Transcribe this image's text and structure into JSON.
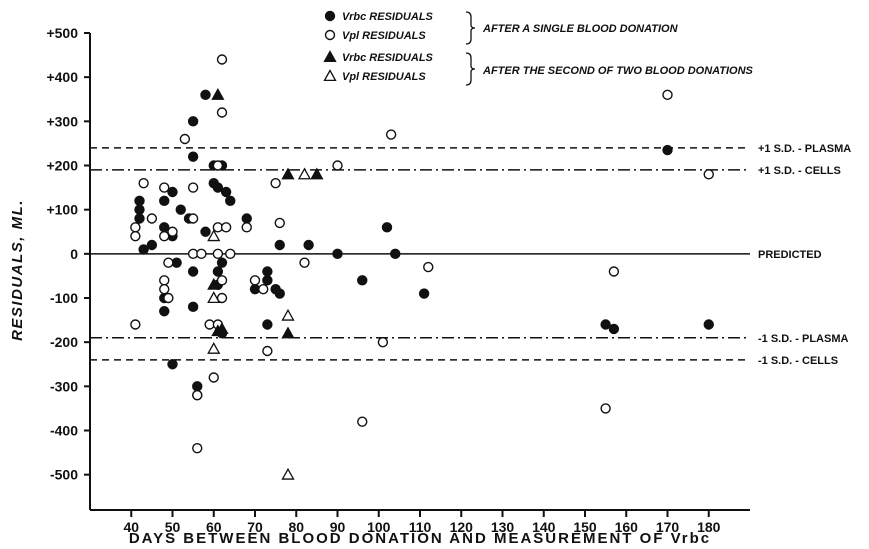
{
  "chart_data": {
    "type": "scatter",
    "xlabel": "DAYS BETWEEN BLOOD DONATION AND MEASUREMENT OF Vrbc",
    "ylabel": "RESIDUALS, ML.",
    "xlim": [
      30,
      190
    ],
    "ylim": [
      -580,
      500
    ],
    "x_ticks": [
      40,
      50,
      60,
      70,
      80,
      90,
      100,
      110,
      120,
      130,
      140,
      150,
      160,
      170,
      180
    ],
    "x_tick_labels": [
      "40",
      "50",
      "60",
      "70",
      "80",
      "90",
      "100",
      "110",
      "120",
      "130",
      "140",
      "150",
      "160",
      "170",
      "180"
    ],
    "y_ticks": [
      500,
      400,
      300,
      200,
      100,
      0,
      -100,
      -200,
      -300,
      -400,
      -500
    ],
    "y_tick_labels": [
      "+500",
      "+400",
      "+300",
      "+200",
      "+100",
      "0",
      "-100",
      "-200",
      "-300",
      "-400",
      "-500"
    ],
    "reference_lines": [
      {
        "label": "+1 S.D. - PLASMA",
        "y": 240,
        "style": "dashed"
      },
      {
        "label": "+1 S.D. - CELLS",
        "y": 190,
        "style": "dash-dot"
      },
      {
        "label": "PREDICTED",
        "y": 0,
        "style": "solid"
      },
      {
        "label": "-1 S.D. - PLASMA",
        "y": -190,
        "style": "dash-dot"
      },
      {
        "label": "-1 S.D. - CELLS",
        "y": -240,
        "style": "dashed"
      }
    ],
    "legend": {
      "entries": [
        {
          "symbol": "filled-circle",
          "label": "Vrbc RESIDUALS"
        },
        {
          "symbol": "open-circle",
          "label": "Vpl RESIDUALS"
        },
        {
          "symbol": "filled-triangle",
          "label": "Vrbc RESIDUALS"
        },
        {
          "symbol": "open-triangle",
          "label": "Vpl RESIDUALS"
        }
      ],
      "groups": [
        {
          "label": "AFTER A SINGLE BLOOD DONATION"
        },
        {
          "label": "AFTER THE SECOND OF TWO BLOOD DONATIONS"
        }
      ],
      "position": "top-center"
    },
    "series": [
      {
        "symbol": "filled-circle",
        "points": [
          [
            42,
            120
          ],
          [
            42,
            100
          ],
          [
            42,
            80
          ],
          [
            43,
            10
          ],
          [
            45,
            20
          ],
          [
            48,
            120
          ],
          [
            48,
            60
          ],
          [
            48,
            -100
          ],
          [
            48,
            -130
          ],
          [
            50,
            140
          ],
          [
            50,
            40
          ],
          [
            51,
            -20
          ],
          [
            50,
            -250
          ],
          [
            52,
            100
          ],
          [
            54,
            80
          ],
          [
            55,
            300
          ],
          [
            55,
            220
          ],
          [
            55,
            -40
          ],
          [
            55,
            -120
          ],
          [
            56,
            -300
          ],
          [
            56,
            -320
          ],
          [
            58,
            50
          ],
          [
            58,
            360
          ],
          [
            60,
            200
          ],
          [
            60,
            160
          ],
          [
            61,
            150
          ],
          [
            61,
            -40
          ],
          [
            61,
            -70
          ],
          [
            62,
            200
          ],
          [
            62,
            -20
          ],
          [
            62,
            -180
          ],
          [
            63,
            140
          ],
          [
            64,
            120
          ],
          [
            68,
            80
          ],
          [
            70,
            -80
          ],
          [
            73,
            -40
          ],
          [
            73,
            -60
          ],
          [
            73,
            -160
          ],
          [
            75,
            -80
          ],
          [
            76,
            -90
          ],
          [
            76,
            20
          ],
          [
            83,
            20
          ],
          [
            90,
            0
          ],
          [
            96,
            -60
          ],
          [
            102,
            60
          ],
          [
            104,
            0
          ],
          [
            111,
            -90
          ],
          [
            155,
            -160
          ],
          [
            157,
            -170
          ],
          [
            170,
            235
          ],
          [
            180,
            -160
          ]
        ]
      },
      {
        "symbol": "open-circle",
        "points": [
          [
            41,
            60
          ],
          [
            41,
            40
          ],
          [
            41,
            -160
          ],
          [
            43,
            160
          ],
          [
            45,
            80
          ],
          [
            48,
            150
          ],
          [
            48,
            40
          ],
          [
            48,
            -60
          ],
          [
            48,
            -80
          ],
          [
            49,
            -20
          ],
          [
            49,
            -100
          ],
          [
            50,
            50
          ],
          [
            53,
            260
          ],
          [
            55,
            150
          ],
          [
            55,
            0
          ],
          [
            55,
            80
          ],
          [
            56,
            -320
          ],
          [
            56,
            -440
          ],
          [
            57,
            0
          ],
          [
            59,
            -160
          ],
          [
            60,
            -280
          ],
          [
            61,
            0
          ],
          [
            61,
            60
          ],
          [
            61,
            200
          ],
          [
            61,
            -160
          ],
          [
            62,
            320
          ],
          [
            62,
            -60
          ],
          [
            62,
            -100
          ],
          [
            62,
            440
          ],
          [
            63,
            60
          ],
          [
            64,
            0
          ],
          [
            68,
            60
          ],
          [
            70,
            -60
          ],
          [
            72,
            -80
          ],
          [
            73,
            -220
          ],
          [
            75,
            160
          ],
          [
            76,
            70
          ],
          [
            82,
            -20
          ],
          [
            90,
            200
          ],
          [
            96,
            -380
          ],
          [
            101,
            -200
          ],
          [
            103,
            270
          ],
          [
            112,
            -30
          ],
          [
            155,
            -350
          ],
          [
            157,
            -40
          ],
          [
            170,
            360
          ],
          [
            180,
            180
          ]
        ]
      },
      {
        "symbol": "filled-triangle",
        "points": [
          [
            61,
            360
          ],
          [
            60,
            -70
          ],
          [
            62,
            -170
          ],
          [
            78,
            180
          ],
          [
            85,
            180
          ],
          [
            78,
            -180
          ],
          [
            61,
            -175
          ]
        ]
      },
      {
        "symbol": "open-triangle",
        "points": [
          [
            60,
            40
          ],
          [
            60,
            -100
          ],
          [
            60,
            -215
          ],
          [
            78,
            -140
          ],
          [
            82,
            180
          ],
          [
            78,
            -500
          ]
        ]
      }
    ]
  }
}
